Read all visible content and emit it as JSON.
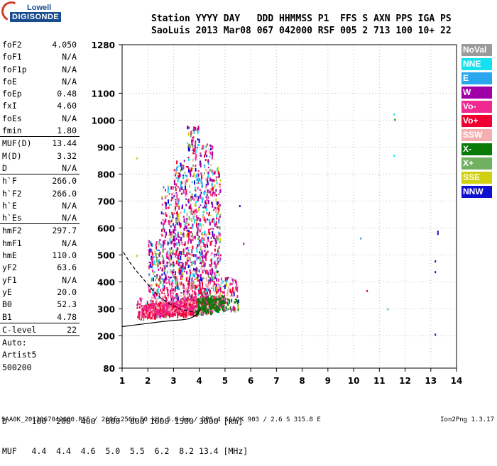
{
  "logo": {
    "line1": "Lowell",
    "line2": "DIGISONDE"
  },
  "header": {
    "row1": "Station YYYY DAY   DDD HHMMSS P1  FFS S AXN PPS IGA PS",
    "row2": "SaoLuis 2013 Mar08 067 042000 RSF 005 2 713 100 10+ 22"
  },
  "params": [
    {
      "k": "foF2",
      "v": "4.050"
    },
    {
      "k": "foF1",
      "v": "N/A"
    },
    {
      "k": "foF1p",
      "v": "N/A"
    },
    {
      "k": "foE",
      "v": "N/A"
    },
    {
      "k": "foEp",
      "v": "0.48"
    },
    {
      "k": "fxI",
      "v": "4.60"
    },
    {
      "k": "foEs",
      "v": "N/A"
    },
    {
      "k": "fmin",
      "v": "1.80",
      "sep": true
    },
    {
      "k": "MUF(D)",
      "v": "13.44"
    },
    {
      "k": "M(D)",
      "v": "3.32"
    },
    {
      "k": "D",
      "v": "N/A",
      "sep": true
    },
    {
      "k": "h`F",
      "v": "266.0"
    },
    {
      "k": "h`F2",
      "v": "266.0"
    },
    {
      "k": "h`E",
      "v": "N/A"
    },
    {
      "k": "h`Es",
      "v": "N/A",
      "sep": true
    },
    {
      "k": "hmF2",
      "v": "297.7"
    },
    {
      "k": "hmF1",
      "v": "N/A"
    },
    {
      "k": "hmE",
      "v": "110.0"
    },
    {
      "k": "yF2",
      "v": "63.6"
    },
    {
      "k": "yF1",
      "v": "N/A"
    },
    {
      "k": "yE",
      "v": "20.0"
    },
    {
      "k": "B0",
      "v": "52.3"
    },
    {
      "k": "B1",
      "v": "4.78",
      "sep": true
    },
    {
      "k": "C-level",
      "v": "22",
      "sep": true
    },
    {
      "k": "Auto:",
      "v": ""
    },
    {
      "k": "Artist5",
      "v": ""
    },
    {
      "k": "500200",
      "v": ""
    }
  ],
  "legend": [
    {
      "label": "NoVal",
      "color": "#9a9a9a"
    },
    {
      "label": "NNE",
      "color": "#16e0f0"
    },
    {
      "label": "E",
      "color": "#2aa6f0"
    },
    {
      "label": "W",
      "color": "#a000a8"
    },
    {
      "label": "Vo-",
      "color": "#f02890"
    },
    {
      "label": "Vo+",
      "color": "#f00030"
    },
    {
      "label": "SSW",
      "color": "#f4b0b0"
    },
    {
      "label": "X-",
      "color": "#087a08"
    },
    {
      "label": "X+",
      "color": "#70b060"
    },
    {
      "label": "SSE",
      "color": "#d0d010"
    },
    {
      "label": "NNW",
      "color": "#1010d0"
    }
  ],
  "muf_table": {
    "d_row": "D     100  200  400  600  800 1000 1500 3000 [km]",
    "muf_row": "MUF   4.4  4.4  4.6  5.0  5.5  6.2  8.2 13.4 [MHz]"
  },
  "footer": "SAA0K_2013067042000.RSF / 260fx256h 50 kHz 5.0 km / DPS-4 SAA0K 903 / 2.6 S 315.8 E",
  "version": "Ion2Png 1.3.17",
  "chart_data": {
    "type": "scatter",
    "title": "",
    "xlabel": "",
    "ylabel": "",
    "xlim": [
      1,
      14
    ],
    "ylim": [
      80,
      1280
    ],
    "x_ticks": [
      1,
      2,
      3,
      4,
      5,
      6,
      7,
      8,
      9,
      10,
      11,
      12,
      13,
      14
    ],
    "y_ticks": [
      80,
      200,
      300,
      400,
      500,
      600,
      700,
      800,
      900,
      1000,
      1100,
      1280
    ],
    "trace_profile": {
      "x": [
        1.0,
        1.5,
        2.0,
        2.5,
        3.0,
        3.3,
        3.6,
        3.85,
        4.0,
        4.05
      ],
      "y": [
        234,
        240,
        246,
        252,
        257,
        259,
        263,
        274,
        290,
        298
      ]
    },
    "dashed_profile": {
      "x": [
        1.05,
        1.3,
        1.6,
        1.9,
        2.2,
        2.5,
        2.9,
        3.3,
        3.7,
        4.0,
        4.05
      ],
      "y": [
        510,
        472,
        435,
        402,
        368,
        340,
        315,
        298,
        290,
        292,
        298
      ]
    },
    "scatter_blobs": [
      {
        "x0": 1.5,
        "x1": 2.0,
        "ymin": 270,
        "ymax": 345
      },
      {
        "x0": 2.0,
        "x1": 2.5,
        "ymin": 275,
        "ymax": 560
      },
      {
        "x0": 2.5,
        "x1": 3.0,
        "ymin": 280,
        "ymax": 760
      },
      {
        "x0": 3.0,
        "x1": 3.5,
        "ymin": 280,
        "ymax": 860
      },
      {
        "x0": 3.5,
        "x1": 4.0,
        "ymin": 285,
        "ymax": 980
      },
      {
        "x0": 4.0,
        "x1": 4.5,
        "ymin": 290,
        "ymax": 920
      },
      {
        "x0": 4.5,
        "x1": 4.8,
        "ymin": 300,
        "ymax": 840
      },
      {
        "x0": 4.8,
        "x1": 5.5,
        "ymin": 300,
        "ymax": 420
      }
    ],
    "isolated_points": [
      {
        "x": 11.55,
        "y": 1025,
        "c": "NNE"
      },
      {
        "x": 11.58,
        "y": 1005,
        "c": "X-"
      },
      {
        "x": 11.55,
        "y": 872,
        "c": "NNE"
      },
      {
        "x": 13.25,
        "y": 590,
        "c": "NNW"
      },
      {
        "x": 13.25,
        "y": 582,
        "c": "NNW"
      },
      {
        "x": 13.15,
        "y": 480,
        "c": "NNW"
      },
      {
        "x": 13.15,
        "y": 440,
        "c": "NNW"
      },
      {
        "x": 13.15,
        "y": 208,
        "c": "NNW"
      },
      {
        "x": 10.25,
        "y": 565,
        "c": "E"
      },
      {
        "x": 10.5,
        "y": 370,
        "c": "Vo+"
      },
      {
        "x": 11.3,
        "y": 302,
        "c": "NNE"
      },
      {
        "x": 1.55,
        "y": 862,
        "c": "SSE"
      },
      {
        "x": 1.55,
        "y": 500,
        "c": "SSE"
      },
      {
        "x": 5.7,
        "y": 545,
        "c": "W"
      },
      {
        "x": 5.55,
        "y": 685,
        "c": "NNW"
      }
    ]
  }
}
